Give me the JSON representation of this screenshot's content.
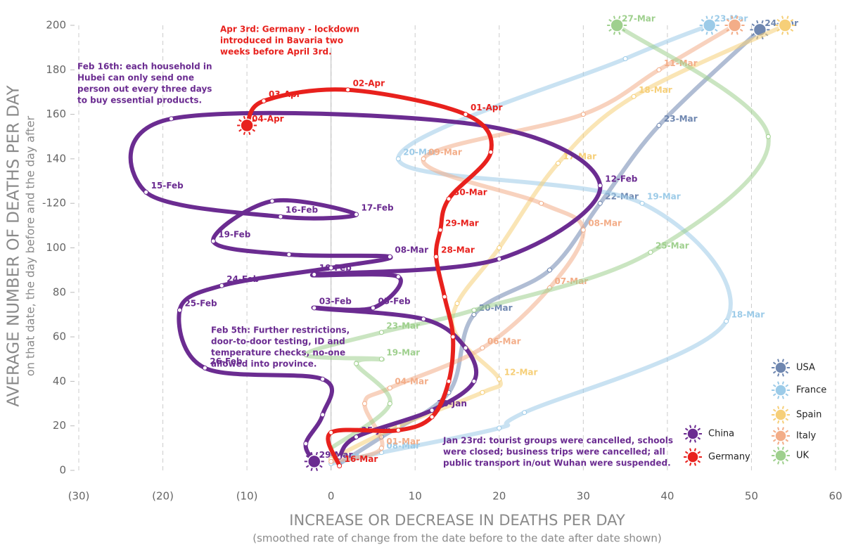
{
  "chart_data": {
    "type": "line",
    "y_title": "AVERAGE NUMBER OF DEATHS PER DAY",
    "y_subtitle": "on that date, the day before and the day after",
    "x_title": "INCREASE OR DECREASE IN DEATHS PER DAY",
    "x_subtitle": "(smoothed rate of change from the date before to the date after date shown)",
    "xlim": [
      -30,
      60
    ],
    "ylim": [
      0,
      200
    ],
    "xticks": [
      {
        "value": -30,
        "label": "(30)"
      },
      {
        "value": -20,
        "label": "(20)"
      },
      {
        "value": -10,
        "label": "(10)"
      },
      0,
      10,
      20,
      30,
      40,
      50,
      60
    ],
    "yticks": [
      0,
      20,
      40,
      60,
      80,
      100,
      {
        "value": 120,
        "label": "-120"
      },
      140,
      160,
      180,
      200
    ],
    "grid": true,
    "series": [
      {
        "name": "USA",
        "color": "#6f87b0",
        "x": [
          1,
          6,
          14,
          17,
          26,
          32,
          39,
          51
        ],
        "values": [
          3,
          15,
          35,
          70,
          90,
          120,
          155,
          198
        ],
        "labels": [
          null,
          null,
          null,
          "20-Mar",
          null,
          "22-Mar",
          "23-Mar",
          "24-Mar"
        ]
      },
      {
        "name": "France",
        "color": "#9ccbe8",
        "x": [
          0,
          6,
          20,
          23,
          47,
          37,
          8,
          35,
          45
        ],
        "values": [
          3,
          8,
          19,
          26,
          67,
          120,
          140,
          185,
          200
        ],
        "labels": [
          "09-Mar",
          "08-Mar",
          null,
          null,
          "18-Mar",
          "19-Mar",
          "20-Mar",
          null,
          "23-Mar"
        ]
      },
      {
        "name": "Spain",
        "color": "#f6cf78",
        "x": [
          0,
          8,
          18,
          20,
          15,
          15,
          20,
          27,
          36,
          54
        ],
        "values": [
          5,
          20,
          35,
          41,
          60,
          75,
          100,
          138,
          168,
          200
        ],
        "labels": [
          null,
          null,
          null,
          "12-Mar",
          null,
          null,
          null,
          "17-Mar",
          "18-Mar",
          null
        ]
      },
      {
        "name": "Italy",
        "color": "#f3ad88",
        "x": [
          0,
          6,
          4,
          7,
          18,
          26,
          30,
          25,
          11,
          30,
          39,
          48
        ],
        "values": [
          4,
          10,
          30,
          37,
          55,
          82,
          108,
          120,
          140,
          160,
          180,
          200
        ],
        "labels": [
          null,
          "01-Mar",
          null,
          "04-Mar",
          "06-Mar",
          "07-Mar",
          "08-Mar",
          null,
          "09-Mar",
          null,
          "11-Mar",
          null
        ]
      },
      {
        "name": "UK",
        "color": "#9fd08e",
        "x": [
          0,
          7,
          3,
          6,
          -3,
          6,
          17,
          38,
          52,
          34
        ],
        "values": [
          10,
          30,
          48,
          50,
          52,
          62,
          72,
          98,
          150,
          200
        ],
        "labels": [
          null,
          null,
          null,
          "19-Mar",
          null,
          "23-Mar",
          null,
          "25-Mar",
          null,
          "27-Mar"
        ]
      },
      {
        "name": "China",
        "color": "#6b2c91",
        "x": [
          1,
          3,
          12,
          17,
          16,
          11,
          -2,
          5,
          8,
          -2,
          20,
          32,
          18,
          -19,
          -22,
          -6,
          3,
          -7,
          -14,
          -5,
          7,
          0,
          -13,
          -18,
          -15,
          -1,
          -1,
          -3,
          -2
        ],
        "values": [
          6,
          15,
          27,
          40,
          55,
          68,
          73,
          73,
          87,
          88,
          95,
          128,
          155,
          158,
          125,
          114,
          115,
          121,
          103,
          97,
          96,
          91,
          83,
          72,
          46,
          41,
          25,
          12,
          4
        ],
        "labels": [
          null,
          "25-Jan",
          "30-Jan",
          null,
          null,
          null,
          "03-Feb",
          "05-Feb",
          null,
          "10-Feb",
          null,
          "12-Feb",
          null,
          null,
          "15-Feb",
          "16-Feb",
          "17-Feb",
          null,
          "19-Feb",
          null,
          "08-Mar",
          null,
          "24-Feb",
          "25-Feb",
          "26-Feb",
          null,
          null,
          null,
          "29-Mar"
        ]
      },
      {
        "name": "Germany",
        "color": "#e8211d",
        "x": [
          1,
          0,
          8,
          12,
          14,
          14.5,
          13.5,
          12.5,
          13,
          14,
          19,
          16,
          2,
          -8,
          -10
        ],
        "values": [
          2,
          17,
          18,
          24,
          40,
          60,
          78,
          96,
          108,
          122,
          143,
          160,
          171,
          166,
          155
        ],
        "labels": [
          "16-Mar",
          null,
          null,
          null,
          null,
          null,
          null,
          "28-Mar",
          "29-Mar",
          "30-Mar",
          null,
          "01-Apr",
          "02-Apr",
          "03-Apr",
          "04-Apr"
        ]
      }
    ],
    "annotations": [
      {
        "color": "#e8211d",
        "lines": [
          "Apr 3rd: Germany - lockdown",
          "introduced in Bavaria two",
          "weeks before April 3rd."
        ]
      },
      {
        "color": "#6b2c91",
        "lines": [
          "Feb 16th: each household in",
          "Hubei can only send one",
          "person out every three days",
          "to buy essential products."
        ]
      },
      {
        "color": "#6b2c91",
        "lines": [
          "Feb 5th: Further restrictions,",
          "door-to-door testing, ID and",
          "temperature checks, no-one",
          "allowed into province."
        ]
      },
      {
        "color": "#6b2c91",
        "lines": [
          "Jan 23rd: tourist groups were cancelled, schools",
          "were closed; business trips were cancelled; all",
          "public transport in/out Wuhan were suspended."
        ]
      }
    ]
  }
}
